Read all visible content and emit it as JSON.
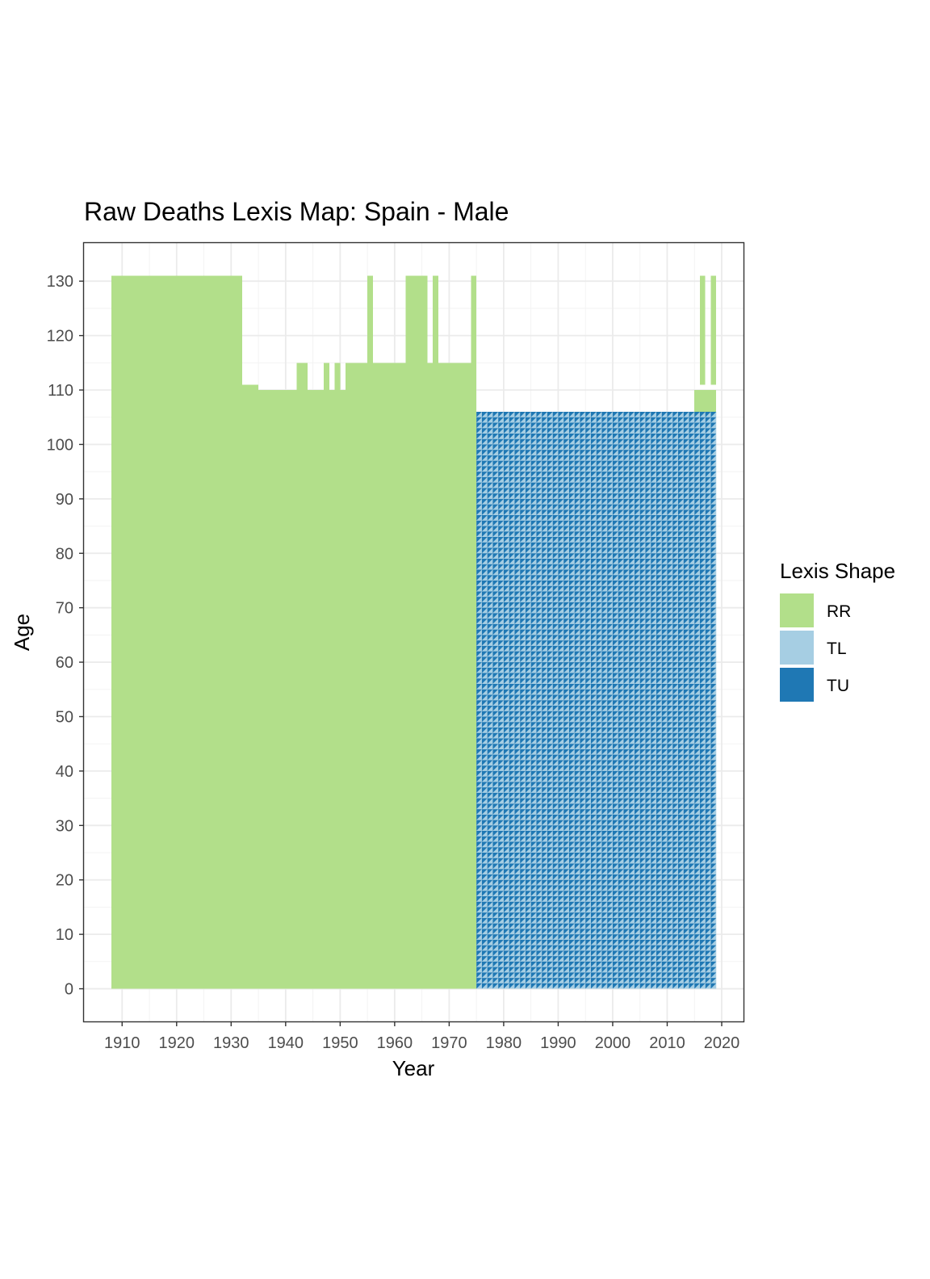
{
  "chart_data": {
    "type": "heatmap",
    "title": "Raw Deaths Lexis Map: Spain - Male",
    "xlabel": "Year",
    "ylabel": "Age",
    "xlim": [
      1903,
      2024
    ],
    "ylim": [
      -6,
      137
    ],
    "x_ticks": [
      1910,
      1920,
      1930,
      1940,
      1950,
      1960,
      1970,
      1980,
      1990,
      2000,
      2010,
      2020
    ],
    "y_ticks": [
      0,
      10,
      20,
      30,
      40,
      50,
      60,
      70,
      80,
      90,
      100,
      110,
      120,
      130
    ],
    "grid": true,
    "legend": {
      "title": "Lexis Shape",
      "position": "right",
      "entries": [
        {
          "label": "RR",
          "color": "#b2df8a"
        },
        {
          "label": "TL",
          "color": "#a6cee3"
        },
        {
          "label": "TU",
          "color": "#1f78b4"
        }
      ]
    },
    "rr_blocks": [
      {
        "years": [
          1908,
          1932
        ],
        "ages": [
          0,
          131
        ]
      },
      {
        "years": [
          1932,
          1975
        ],
        "ages": [
          0,
          106
        ]
      },
      {
        "years": [
          1932,
          1935
        ],
        "ages": [
          106,
          111
        ]
      },
      {
        "years": [
          1935,
          1955
        ],
        "ages": [
          106,
          110
        ]
      },
      {
        "years": [
          1942,
          1944
        ],
        "ages": [
          110,
          115
        ]
      },
      {
        "years": [
          1947,
          1948
        ],
        "ages": [
          110,
          115
        ]
      },
      {
        "years": [
          1949,
          1950
        ],
        "ages": [
          110,
          115
        ]
      },
      {
        "years": [
          1951,
          1955
        ],
        "ages": [
          110,
          115
        ]
      },
      {
        "years": [
          1955,
          1956
        ],
        "ages": [
          106,
          131
        ]
      },
      {
        "years": [
          1956,
          1960
        ],
        "ages": [
          106,
          115
        ]
      },
      {
        "years": [
          1960,
          1962
        ],
        "ages": [
          106,
          115
        ]
      },
      {
        "years": [
          1962,
          1966
        ],
        "ages": [
          106,
          131
        ]
      },
      {
        "years": [
          1966,
          1967
        ],
        "ages": [
          106,
          115
        ]
      },
      {
        "years": [
          1967,
          1968
        ],
        "ages": [
          106,
          131
        ]
      },
      {
        "years": [
          1968,
          1974
        ],
        "ages": [
          106,
          115
        ]
      },
      {
        "years": [
          1974,
          1975
        ],
        "ages": [
          106,
          131
        ]
      },
      {
        "years": [
          2015,
          2019
        ],
        "ages": [
          105,
          110
        ]
      },
      {
        "years": [
          2016,
          2017
        ],
        "ages": [
          111,
          131
        ]
      },
      {
        "years": [
          2018,
          2019
        ],
        "ages": [
          111,
          131
        ]
      }
    ],
    "triangle_region": {
      "years": [
        1975,
        2019
      ],
      "ages": [
        0,
        106
      ]
    },
    "triangle_shapes": [
      "TL",
      "TU"
    ]
  }
}
